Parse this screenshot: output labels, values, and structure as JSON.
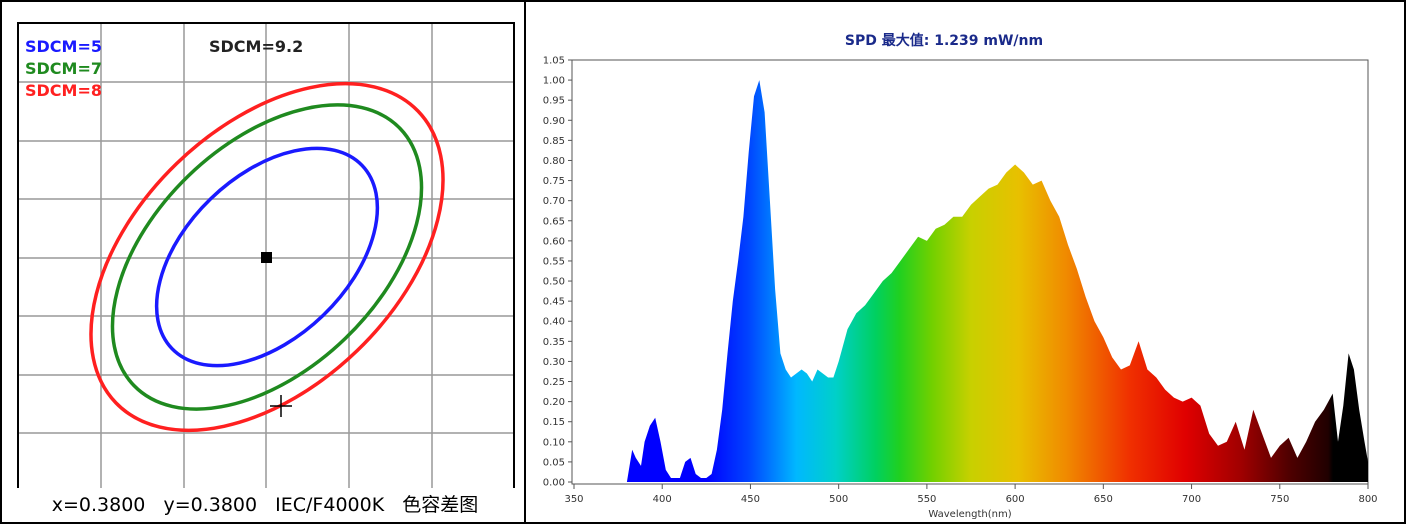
{
  "left": {
    "legend": [
      {
        "label": "SDCM=5",
        "color": "#1a1aff"
      },
      {
        "label": "SDCM=7",
        "color": "#1f8a1f"
      },
      {
        "label": "SDCM=8",
        "color": "#ff2020"
      }
    ],
    "sdcm_value": "SDCM=9.2",
    "caption": {
      "x_text": "x=0.3800",
      "y_text": "y=0.3800",
      "standard": "IEC/F4000K",
      "title": "色容差图"
    }
  },
  "chart_data": {
    "type": "area",
    "title": "SPD 最大值: 1.239 mW/nm",
    "xlabel": "Wavelength(nm)",
    "ylabel": "",
    "xlim": [
      350,
      800
    ],
    "ylim": [
      0,
      1.05
    ],
    "x_ticks": [
      "350",
      "400",
      "450",
      "500",
      "550",
      "600",
      "650",
      "700",
      "750",
      "800"
    ],
    "y_ticks": [
      "0.00",
      "0.05",
      "0.10",
      "0.15",
      "0.20",
      "0.25",
      "0.30",
      "0.35",
      "0.40",
      "0.45",
      "0.50",
      "0.55",
      "0.60",
      "0.65",
      "0.70",
      "0.75",
      "0.80",
      "0.85",
      "0.90",
      "0.95",
      "1.00",
      "1.05"
    ],
    "series": [
      {
        "x": [
          350,
          380,
          383,
          385,
          388,
          390,
          393,
          396,
          399,
          402,
          405,
          410,
          413,
          416,
          419,
          422,
          425,
          428,
          431,
          434,
          437,
          440,
          443,
          446,
          449,
          452,
          455,
          458,
          461,
          464,
          467,
          470,
          473,
          476,
          479,
          482,
          485,
          488,
          491,
          494,
          497,
          500,
          505,
          510,
          515,
          520,
          525,
          530,
          535,
          540,
          545,
          550,
          555,
          560,
          565,
          570,
          575,
          580,
          585,
          590,
          595,
          600,
          605,
          610,
          615,
          620,
          625,
          630,
          635,
          640,
          645,
          650,
          655,
          660,
          665,
          670,
          675,
          680,
          685,
          690,
          695,
          700,
          705,
          710,
          715,
          720,
          725,
          730,
          735,
          740,
          745,
          750,
          755,
          760,
          765,
          770,
          775,
          780,
          783,
          786,
          789,
          792,
          795,
          798,
          800
        ],
        "values": [
          0.0,
          0.0,
          0.08,
          0.06,
          0.04,
          0.1,
          0.14,
          0.16,
          0.1,
          0.03,
          0.01,
          0.01,
          0.05,
          0.06,
          0.02,
          0.01,
          0.01,
          0.02,
          0.08,
          0.18,
          0.32,
          0.45,
          0.55,
          0.66,
          0.82,
          0.96,
          1.0,
          0.92,
          0.7,
          0.48,
          0.32,
          0.28,
          0.26,
          0.27,
          0.28,
          0.27,
          0.25,
          0.28,
          0.27,
          0.26,
          0.26,
          0.3,
          0.38,
          0.42,
          0.44,
          0.47,
          0.5,
          0.52,
          0.55,
          0.58,
          0.61,
          0.6,
          0.63,
          0.64,
          0.66,
          0.66,
          0.69,
          0.71,
          0.73,
          0.74,
          0.77,
          0.79,
          0.77,
          0.74,
          0.75,
          0.7,
          0.66,
          0.59,
          0.53,
          0.46,
          0.4,
          0.36,
          0.31,
          0.28,
          0.29,
          0.35,
          0.28,
          0.26,
          0.23,
          0.21,
          0.2,
          0.21,
          0.19,
          0.12,
          0.09,
          0.1,
          0.15,
          0.08,
          0.18,
          0.12,
          0.06,
          0.09,
          0.11,
          0.06,
          0.1,
          0.15,
          0.18,
          0.22,
          0.1,
          0.19,
          0.32,
          0.28,
          0.18,
          0.1,
          0.05
        ]
      }
    ],
    "grid": false
  }
}
